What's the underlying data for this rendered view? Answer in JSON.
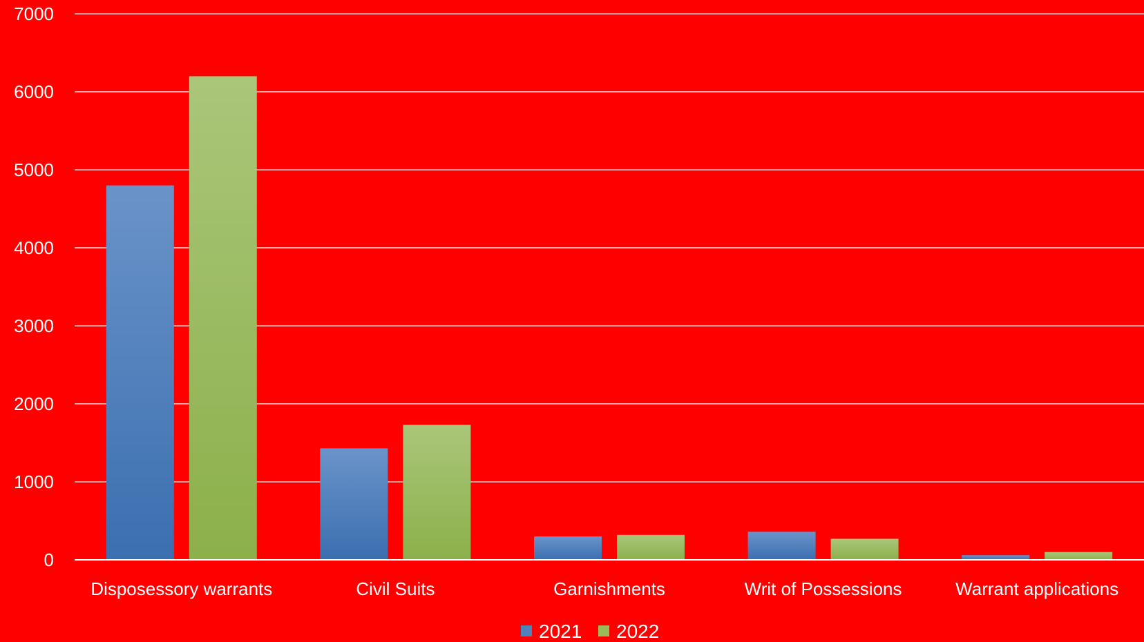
{
  "chart_data": {
    "type": "bar",
    "categories": [
      "Disposessory warrants",
      "Civil Suits",
      "Garnishments",
      "Writ of Possessions",
      "Warrant applications"
    ],
    "series": [
      {
        "name": "2021",
        "values": [
          4800,
          1430,
          300,
          360,
          60
        ],
        "color": "#4f81bd"
      },
      {
        "name": "2022",
        "values": [
          6200,
          1730,
          320,
          270,
          100
        ],
        "color": "#9bbb59"
      }
    ],
    "ylim": [
      0,
      7000
    ],
    "yticks": [
      0,
      1000,
      2000,
      3000,
      4000,
      5000,
      6000,
      7000
    ],
    "grid": true,
    "legend": "bottom",
    "background": "#ff0000",
    "gridline_color": "#ffffff"
  }
}
